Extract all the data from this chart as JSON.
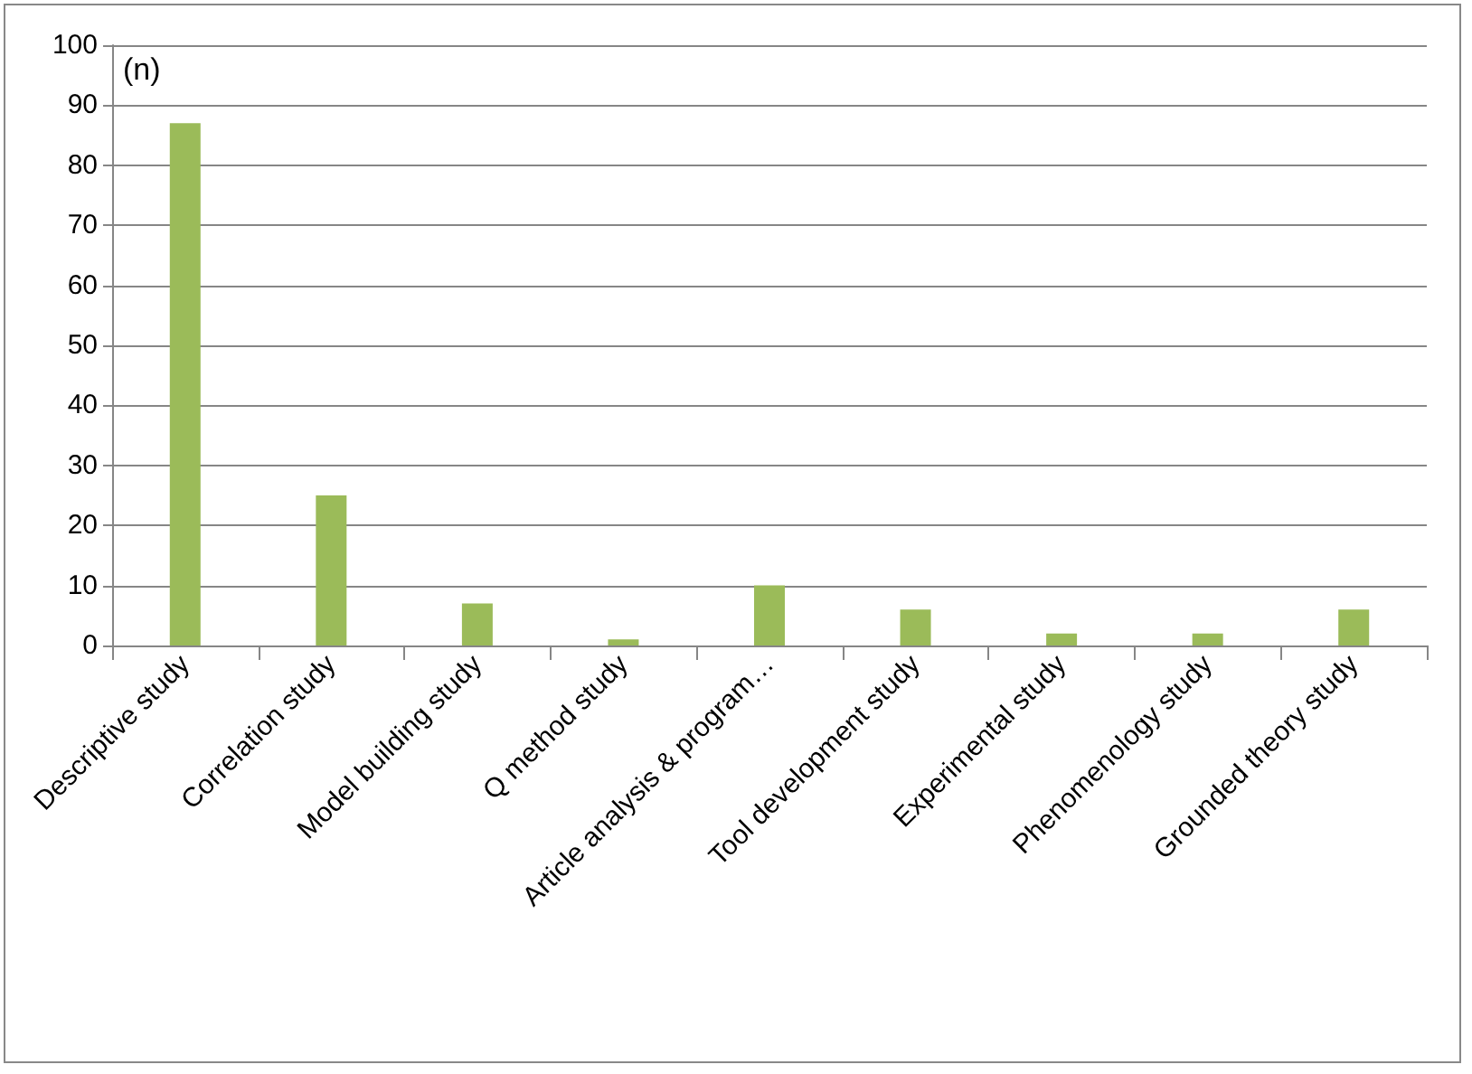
{
  "chart_data": {
    "type": "bar",
    "ylabel": "(n)",
    "categories": [
      "Descriptive study",
      "Correlation study",
      "Model building study",
      "Q method study",
      "Article analysis & program…",
      "Tool development study",
      "Experimental study",
      "Phenomenology study",
      "Grounded theory study"
    ],
    "values": [
      87,
      25,
      7,
      1,
      10,
      6,
      2,
      2,
      6
    ],
    "color": "#9bbb59",
    "ylim": [
      0,
      100
    ],
    "yticks": [
      0,
      10,
      20,
      30,
      40,
      50,
      60,
      70,
      80,
      90,
      100
    ],
    "grid": "y"
  }
}
